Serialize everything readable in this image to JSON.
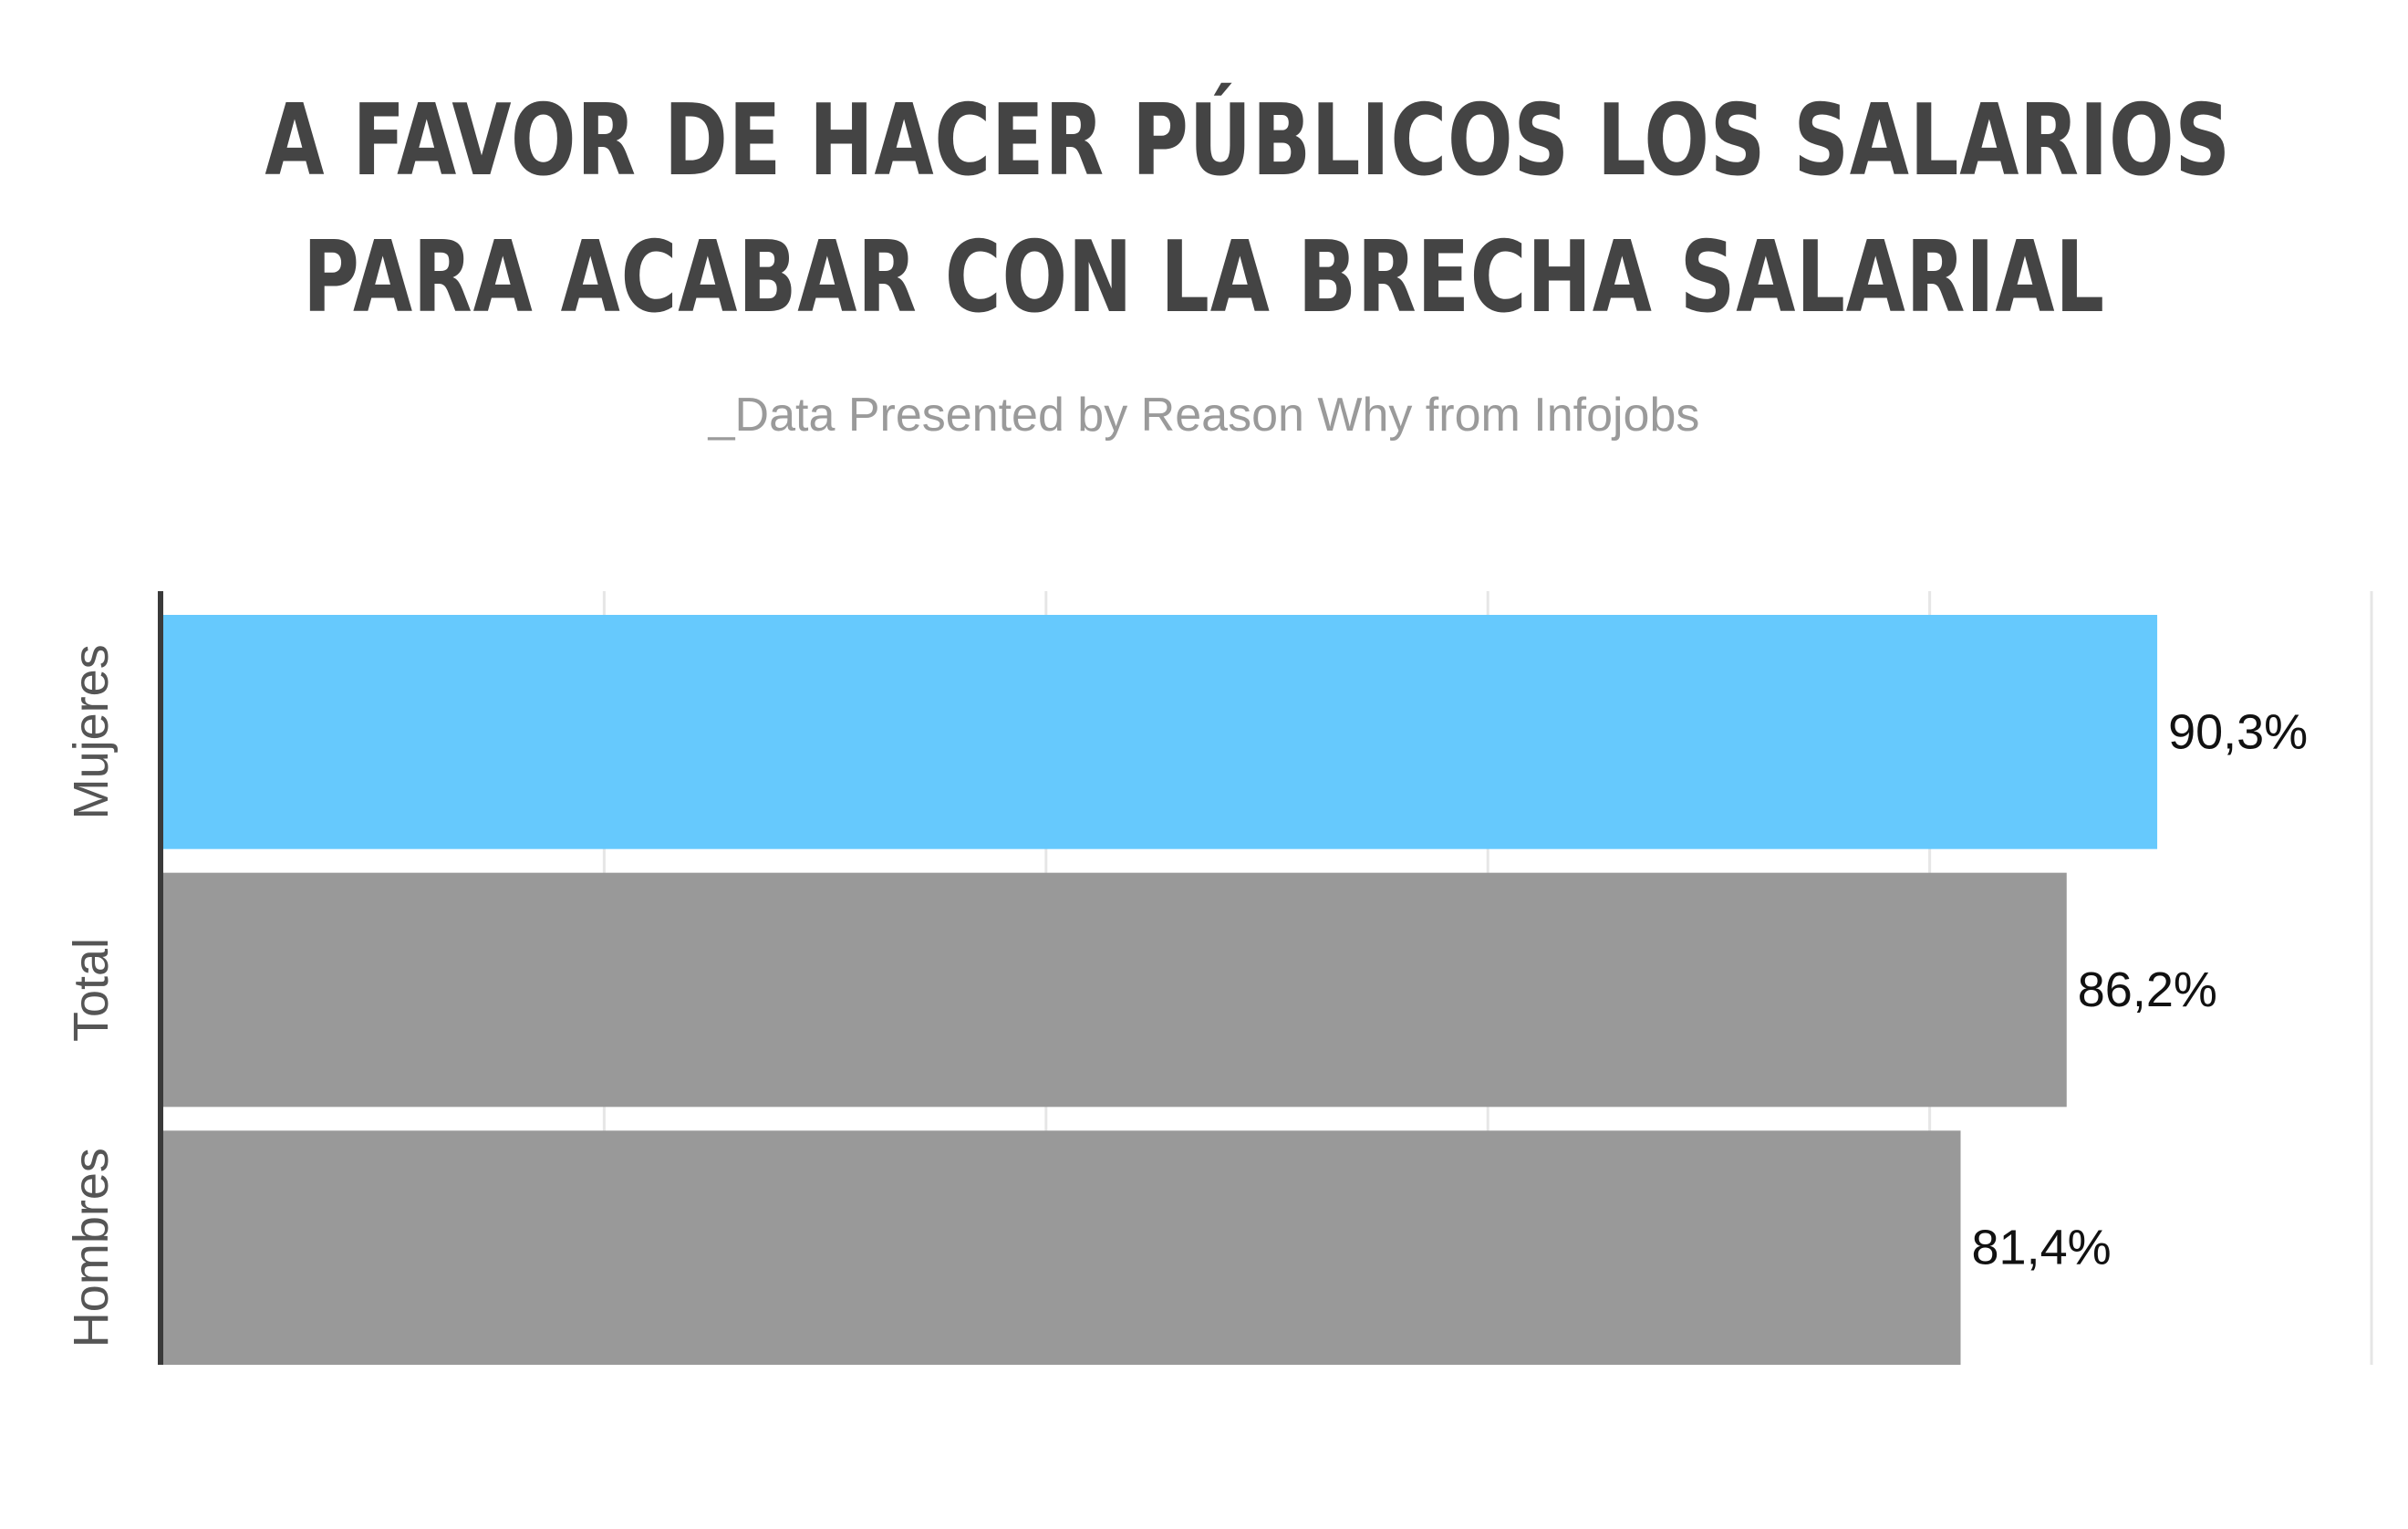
{
  "title_lines": [
    "A FAVOR DE HACER PÚBLICOS LOS SALARIOS",
    "PARA ACABAR CON LA BRECHA SALARIAL"
  ],
  "subtitle": "_Data Presented by Reason Why from Infojobs",
  "chart_data": {
    "type": "bar",
    "orientation": "horizontal",
    "categories": [
      "Mujeres",
      "Total",
      "Hombres"
    ],
    "values": [
      90.3,
      86.2,
      81.4
    ],
    "value_labels": [
      "90,3%",
      "86,2%",
      "81,4%"
    ],
    "bar_colors": [
      "#66c9fd",
      "#999999",
      "#999999"
    ],
    "xlim": [
      0,
      100
    ],
    "grid": true,
    "xlabel": "",
    "ylabel": ""
  }
}
